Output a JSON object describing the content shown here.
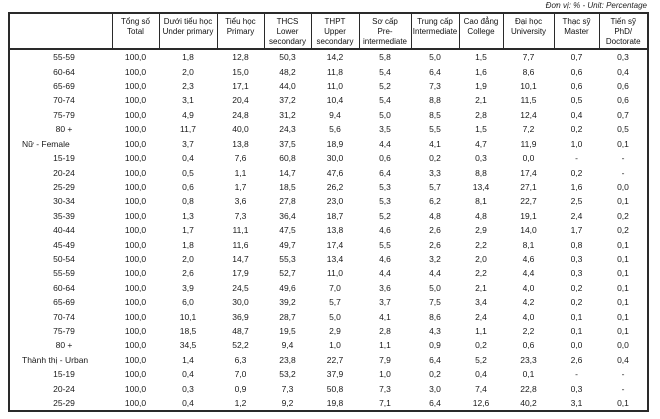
{
  "unit_note": "Đơn vị: % - Unit: Percentage",
  "table": {
    "columns": [
      {
        "vi": "Tổng số",
        "en": "Total"
      },
      {
        "vi": "Dưới tiểu học",
        "en": "Under primary"
      },
      {
        "vi": "Tiểu học",
        "en": "Primary"
      },
      {
        "vi": "THCS",
        "en": "Lower secondary"
      },
      {
        "vi": "THPT",
        "en": "Upper secondary"
      },
      {
        "vi": "Sơ cấp",
        "en": "Pre- intermediate"
      },
      {
        "vi": "Trung cấp",
        "en": "Intermediate"
      },
      {
        "vi": "Cao đẳng",
        "en": "College"
      },
      {
        "vi": "Đại học",
        "en": "University"
      },
      {
        "vi": "Thạc sỹ",
        "en": "Master"
      },
      {
        "vi": "Tiến sỹ",
        "en": "PhD/ Doctorate"
      }
    ],
    "rows": [
      {
        "label": "55-59",
        "group": false,
        "values": [
          "100,0",
          "1,8",
          "12,8",
          "50,3",
          "14,2",
          "5,8",
          "5,0",
          "1,5",
          "7,7",
          "0,7",
          "0,3"
        ]
      },
      {
        "label": "60-64",
        "group": false,
        "values": [
          "100,0",
          "2,0",
          "15,0",
          "48,2",
          "11,8",
          "5,4",
          "6,4",
          "1,6",
          "8,6",
          "0,6",
          "0,4"
        ]
      },
      {
        "label": "65-69",
        "group": false,
        "values": [
          "100,0",
          "2,3",
          "17,1",
          "44,0",
          "11,0",
          "5,2",
          "7,3",
          "1,9",
          "10,1",
          "0,6",
          "0,6"
        ]
      },
      {
        "label": "70-74",
        "group": false,
        "values": [
          "100,0",
          "3,1",
          "20,4",
          "37,2",
          "10,4",
          "5,4",
          "8,8",
          "2,1",
          "11,5",
          "0,5",
          "0,6"
        ]
      },
      {
        "label": "75-79",
        "group": false,
        "values": [
          "100,0",
          "4,9",
          "24,8",
          "31,2",
          "9,4",
          "5,0",
          "8,5",
          "2,8",
          "12,4",
          "0,4",
          "0,7"
        ]
      },
      {
        "label": "80 +",
        "group": false,
        "values": [
          "100,0",
          "11,7",
          "40,0",
          "24,3",
          "5,6",
          "3,5",
          "5,5",
          "1,5",
          "7,2",
          "0,2",
          "0,5"
        ]
      },
      {
        "label": "Nữ - Female",
        "group": true,
        "values": [
          "100,0",
          "3,7",
          "13,8",
          "37,5",
          "18,9",
          "4,4",
          "4,1",
          "4,7",
          "11,9",
          "1,0",
          "0,1"
        ]
      },
      {
        "label": "15-19",
        "group": false,
        "values": [
          "100,0",
          "0,4",
          "7,6",
          "60,8",
          "30,0",
          "0,6",
          "0,2",
          "0,3",
          "0,0",
          "-",
          "-"
        ]
      },
      {
        "label": "20-24",
        "group": false,
        "values": [
          "100,0",
          "0,5",
          "1,1",
          "14,7",
          "47,6",
          "6,4",
          "3,3",
          "8,8",
          "17,4",
          "0,2",
          "-"
        ]
      },
      {
        "label": "25-29",
        "group": false,
        "values": [
          "100,0",
          "0,6",
          "1,7",
          "18,5",
          "26,2",
          "5,3",
          "5,7",
          "13,4",
          "27,1",
          "1,6",
          "0,0"
        ]
      },
      {
        "label": "30-34",
        "group": false,
        "values": [
          "100,0",
          "0,8",
          "3,6",
          "27,8",
          "23,0",
          "5,3",
          "6,2",
          "8,1",
          "22,7",
          "2,5",
          "0,1"
        ]
      },
      {
        "label": "35-39",
        "group": false,
        "values": [
          "100,0",
          "1,3",
          "7,3",
          "36,4",
          "18,7",
          "5,2",
          "4,8",
          "4,8",
          "19,1",
          "2,4",
          "0,2"
        ]
      },
      {
        "label": "40-44",
        "group": false,
        "values": [
          "100,0",
          "1,7",
          "11,1",
          "47,5",
          "13,8",
          "4,6",
          "2,6",
          "2,9",
          "14,0",
          "1,7",
          "0,2"
        ]
      },
      {
        "label": "45-49",
        "group": false,
        "values": [
          "100,0",
          "1,8",
          "11,6",
          "49,7",
          "17,4",
          "5,5",
          "2,6",
          "2,2",
          "8,1",
          "0,8",
          "0,1"
        ]
      },
      {
        "label": "50-54",
        "group": false,
        "values": [
          "100,0",
          "2,0",
          "14,7",
          "55,3",
          "13,4",
          "4,6",
          "3,2",
          "2,0",
          "4,6",
          "0,3",
          "0,1"
        ]
      },
      {
        "label": "55-59",
        "group": false,
        "values": [
          "100,0",
          "2,6",
          "17,9",
          "52,7",
          "11,0",
          "4,4",
          "4,4",
          "2,2",
          "4,4",
          "0,3",
          "0,1"
        ]
      },
      {
        "label": "60-64",
        "group": false,
        "values": [
          "100,0",
          "3,9",
          "24,5",
          "49,6",
          "7,0",
          "3,6",
          "5,0",
          "2,1",
          "4,0",
          "0,2",
          "0,1"
        ]
      },
      {
        "label": "65-69",
        "group": false,
        "values": [
          "100,0",
          "6,0",
          "30,0",
          "39,2",
          "5,7",
          "3,7",
          "7,5",
          "3,4",
          "4,2",
          "0,2",
          "0,1"
        ]
      },
      {
        "label": "70-74",
        "group": false,
        "values": [
          "100,0",
          "10,1",
          "36,9",
          "28,7",
          "5,0",
          "4,1",
          "8,6",
          "2,4",
          "4,0",
          "0,1",
          "0,1"
        ]
      },
      {
        "label": "75-79",
        "group": false,
        "values": [
          "100,0",
          "18,5",
          "48,7",
          "19,5",
          "2,9",
          "2,8",
          "4,3",
          "1,1",
          "2,2",
          "0,1",
          "0,1"
        ]
      },
      {
        "label": "80 +",
        "group": false,
        "values": [
          "100,0",
          "34,5",
          "52,2",
          "9,4",
          "1,0",
          "1,1",
          "0,9",
          "0,2",
          "0,6",
          "0,0",
          "0,0"
        ]
      },
      {
        "label": "Thành thị - Urban",
        "group": true,
        "values": [
          "100,0",
          "1,4",
          "6,3",
          "23,8",
          "22,7",
          "7,9",
          "6,4",
          "5,2",
          "23,3",
          "2,6",
          "0,4"
        ]
      },
      {
        "label": "15-19",
        "group": false,
        "values": [
          "100,0",
          "0,4",
          "7,0",
          "53,2",
          "37,9",
          "1,0",
          "0,2",
          "0,4",
          "0,1",
          "-",
          "-"
        ]
      },
      {
        "label": "20-24",
        "group": false,
        "values": [
          "100,0",
          "0,3",
          "0,9",
          "7,3",
          "50,8",
          "7,3",
          "3,0",
          "7,4",
          "22,8",
          "0,3",
          "-"
        ]
      },
      {
        "label": "25-29",
        "group": false,
        "values": [
          "100,0",
          "0,4",
          "1,2",
          "9,2",
          "19,8",
          "7,1",
          "6,4",
          "12,6",
          "40,2",
          "3,1",
          "0,1"
        ]
      }
    ]
  }
}
